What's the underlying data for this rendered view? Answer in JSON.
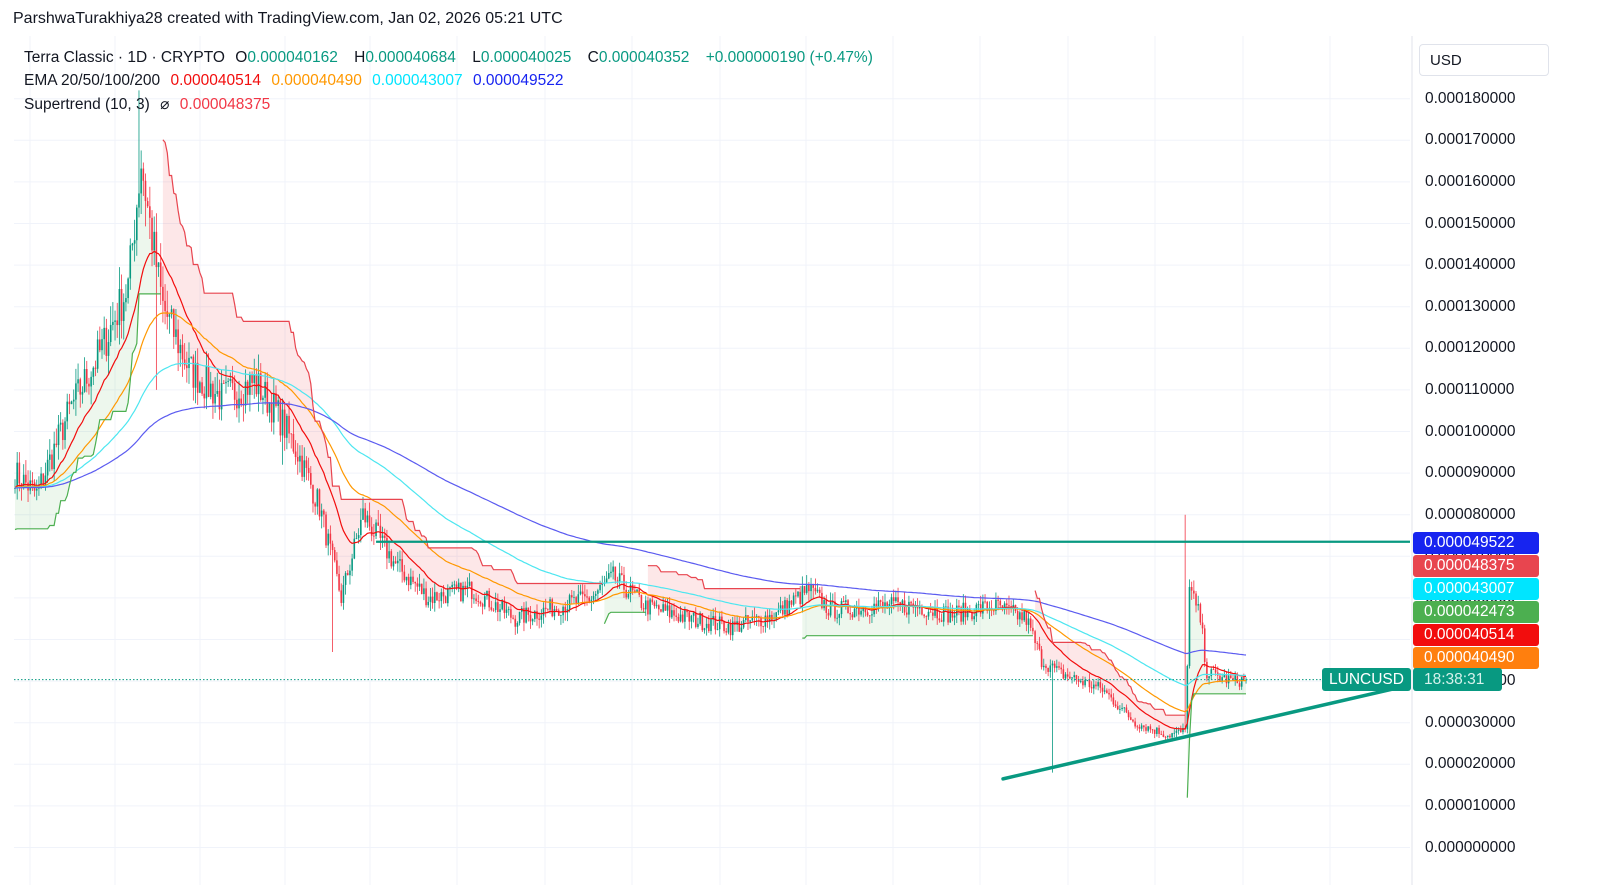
{
  "credit": "ParshwaTurakhiya28 created with TradingView.com, Jan 02, 2026 05:21 UTC",
  "legend": {
    "symbol": "Terra Classic · 1D · CRYPTO",
    "ohlc": [
      {
        "key": "O",
        "value": "0.000040162"
      },
      {
        "key": "H",
        "value": "0.000040684"
      },
      {
        "key": "L",
        "value": "0.000040025"
      },
      {
        "key": "C",
        "value": "0.000040352"
      }
    ],
    "change": "+0.000000190 (+0.47%)",
    "ema_label": "EMA 20/50/100/200",
    "ema_values": [
      "0.000040514",
      "0.000040490",
      "0.000043007",
      "0.000049522"
    ],
    "supertrend_label": "Supertrend (10, 3)",
    "supertrend_symbol": "⌀",
    "supertrend_value": "0.000048375"
  },
  "price_axis": {
    "currency": "USD",
    "ticks": [
      "0.000180000",
      "0.000170000",
      "0.000160000",
      "0.000150000",
      "0.000140000",
      "0.000130000",
      "0.000120000",
      "0.000110000",
      "0.000100000",
      "0.000090000",
      "0.000080000",
      "0.000070000",
      "0.000060000",
      "0.000050000",
      "0.000040000",
      "0.000030000",
      "0.000020000",
      "0.000010000",
      "0.000000000"
    ],
    "tick_values": [
      0.00018,
      0.00017,
      0.00016,
      0.00015,
      0.00014,
      0.00013,
      0.00012,
      0.00011,
      0.0001,
      9e-05,
      8e-05,
      7e-05,
      6e-05,
      5e-05,
      4e-05,
      3e-05,
      2e-05,
      1e-05,
      0
    ]
  },
  "price_labels": [
    {
      "value": "0.000049522",
      "color": "#1724f0",
      "price": 4.9522e-05
    },
    {
      "value": "0.000048375",
      "color": "#e8454f",
      "price": 4.8375e-05
    },
    {
      "value": "0.000043007",
      "color": "#00e5ff",
      "price": 4.3007e-05
    },
    {
      "value": "0.000042473",
      "color": "#4caf50",
      "price": 4.2473e-05
    },
    {
      "value": "0.000040514",
      "color": "#f20d0d",
      "price": 4.0514e-05
    },
    {
      "value": "0.000040490",
      "color": "#ff7f0e",
      "price": 4.049e-05
    }
  ],
  "symbol_tag": "LUNCUSD",
  "countdown": "18:38:31",
  "chart_data": {
    "type": "candlestick",
    "ylim": [
      0,
      0.000185
    ],
    "last_close": 4.0352e-05,
    "resistance_level": 7.35e-05,
    "colors": {
      "up": "#089981",
      "down": "#f23645",
      "ema20": "#f20d0d",
      "ema50": "#ff9800",
      "ema100": "#4de6f0",
      "ema200": "#5b5bf0",
      "st_down": "#e8454f",
      "st_up": "#4caf50",
      "trendline": "#089981"
    },
    "close_anchors": [
      [
        0,
        9e-05
      ],
      [
        10,
        8.5e-05
      ],
      [
        25,
        0.000105
      ],
      [
        40,
        0.00012
      ],
      [
        52,
        0.000135
      ],
      [
        58,
        0.000165
      ],
      [
        62,
        0.00015
      ],
      [
        68,
        0.00013
      ],
      [
        80,
        0.000115
      ],
      [
        95,
        0.000108
      ],
      [
        110,
        0.000112
      ],
      [
        120,
        0.000105
      ],
      [
        130,
        9.5e-05
      ],
      [
        140,
        8.2e-05
      ],
      [
        150,
        6e-05
      ],
      [
        160,
        8e-05
      ],
      [
        175,
        6.8e-05
      ],
      [
        190,
        6e-05
      ],
      [
        210,
        6.2e-05
      ],
      [
        230,
        5.5e-05
      ],
      [
        250,
        5.8e-05
      ],
      [
        265,
        6e-05
      ],
      [
        275,
        6.5e-05
      ],
      [
        290,
        5.8e-05
      ],
      [
        310,
        5.5e-05
      ],
      [
        330,
        5.3e-05
      ],
      [
        350,
        5.6e-05
      ],
      [
        365,
        6.2e-05
      ],
      [
        375,
        5.7e-05
      ],
      [
        395,
        5.8e-05
      ],
      [
        415,
        5.8e-05
      ],
      [
        430,
        5.6e-05
      ],
      [
        450,
        5.8e-05
      ],
      [
        465,
        5.5e-05
      ],
      [
        472,
        4.5e-05
      ],
      [
        480,
        4.2e-05
      ],
      [
        500,
        3.8e-05
      ],
      [
        515,
        3e-05
      ],
      [
        530,
        2.7e-05
      ],
      [
        538,
        2.8e-05
      ],
      [
        540,
        6.2e-05
      ],
      [
        545,
        5.5e-05
      ],
      [
        548,
        4.2e-05
      ],
      [
        560,
        4e-05
      ],
      [
        566,
        4.0352e-05
      ]
    ],
    "total_bars": 567
  }
}
